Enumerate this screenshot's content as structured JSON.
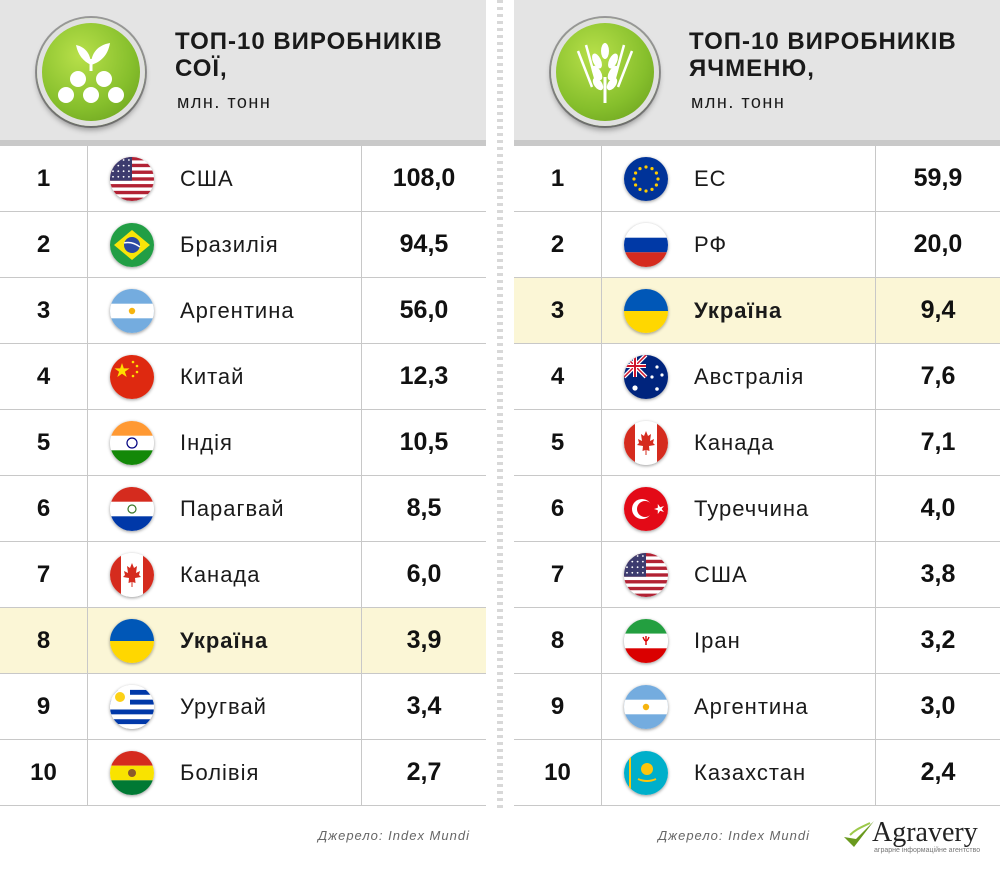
{
  "panels": [
    {
      "id": "soy",
      "logo_icon": "soy-beans-icon",
      "title_line1": "ТОП-10 ВИРОБНИКІВ",
      "title_line2": "СОЇ,",
      "unit": "млн. тонн",
      "rows": [
        {
          "rank": "1",
          "flag": "usa",
          "country": "США",
          "value": "108,0",
          "highlight": false
        },
        {
          "rank": "2",
          "flag": "brazil",
          "country": "Бразилія",
          "value": "94,5",
          "highlight": false
        },
        {
          "rank": "3",
          "flag": "argentina",
          "country": "Аргентина",
          "value": "56,0",
          "highlight": false
        },
        {
          "rank": "4",
          "flag": "china",
          "country": "Китай",
          "value": "12,3",
          "highlight": false
        },
        {
          "rank": "5",
          "flag": "india",
          "country": "Індія",
          "value": "10,5",
          "highlight": false
        },
        {
          "rank": "6",
          "flag": "paraguay",
          "country": "Парагвай",
          "value": "8,5",
          "highlight": false
        },
        {
          "rank": "7",
          "flag": "canada",
          "country": "Канада",
          "value": "6,0",
          "highlight": false
        },
        {
          "rank": "8",
          "flag": "ukraine",
          "country": "Україна",
          "value": "3,9",
          "highlight": true
        },
        {
          "rank": "9",
          "flag": "uruguay",
          "country": "Уругвай",
          "value": "3,4",
          "highlight": false
        },
        {
          "rank": "10",
          "flag": "bolivia",
          "country": "Болівія",
          "value": "2,7",
          "highlight": false
        }
      ],
      "source": "Джерело: Index Mundi"
    },
    {
      "id": "barley",
      "logo_icon": "barley-ear-icon",
      "title_line1": "ТОП-10 ВИРОБНИКІВ",
      "title_line2": "ЯЧМЕНЮ,",
      "unit": "млн. тонн",
      "rows": [
        {
          "rank": "1",
          "flag": "eu",
          "country": "ЕС",
          "value": "59,9",
          "highlight": false
        },
        {
          "rank": "2",
          "flag": "russia",
          "country": "РФ",
          "value": "20,0",
          "highlight": false
        },
        {
          "rank": "3",
          "flag": "ukraine",
          "country": "Україна",
          "value": "9,4",
          "highlight": true
        },
        {
          "rank": "4",
          "flag": "australia",
          "country": "Австралія",
          "value": "7,6",
          "highlight": false
        },
        {
          "rank": "5",
          "flag": "canada",
          "country": "Канада",
          "value": "7,1",
          "highlight": false
        },
        {
          "rank": "6",
          "flag": "turkey",
          "country": "Туреччина",
          "value": "4,0",
          "highlight": false
        },
        {
          "rank": "7",
          "flag": "usa",
          "country": "США",
          "value": "3,8",
          "highlight": false
        },
        {
          "rank": "8",
          "flag": "iran",
          "country": "Іран",
          "value": "3,2",
          "highlight": false
        },
        {
          "rank": "9",
          "flag": "argentina",
          "country": "Аргентина",
          "value": "3,0",
          "highlight": false
        },
        {
          "rank": "10",
          "flag": "kazakhstan",
          "country": "Казахстан",
          "value": "2,4",
          "highlight": false
        }
      ],
      "source": "Джерело: Index Mundi"
    }
  ],
  "brand": {
    "name": "Agravery",
    "tagline": "аграрне інформаційне агентство",
    "icon": "checkmark-leaf-icon"
  },
  "colors": {
    "logo_green": "#86bf2c",
    "header_bg": "#e4e4e4",
    "highlight_row": "#fbf6d6",
    "brand_green": "#6a9a1f"
  }
}
